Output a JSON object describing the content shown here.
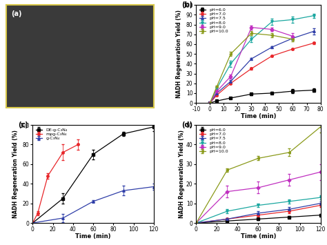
{
  "chart_data": [
    {
      "type": "image",
      "title": "(a)"
    },
    {
      "type": "line",
      "title": "(b)",
      "x_label": "Time (min)",
      "y_label": "NADH Regeneration Yield (%)",
      "xlim": [
        -10,
        80
      ],
      "xticks": [
        -10,
        0,
        10,
        20,
        30,
        40,
        50,
        60,
        70,
        80
      ],
      "ylim": [
        0,
        100
      ],
      "yticks": [
        0,
        10,
        20,
        30,
        40,
        50,
        60,
        70,
        80,
        90,
        100
      ],
      "legend": "upper left",
      "series": [
        {
          "name": "pH=6.0",
          "color": "#000000",
          "marker": "s",
          "x": [
            0,
            5,
            15,
            30,
            45,
            60,
            75
          ],
          "values": [
            0,
            2,
            5,
            9,
            10,
            12,
            13
          ],
          "errors": [
            0,
            1,
            1,
            1,
            1,
            2,
            2
          ]
        },
        {
          "name": "pH=7.0",
          "color": "#e8262a",
          "marker": "o",
          "x": [
            0,
            5,
            15,
            30,
            45,
            60,
            75
          ],
          "values": [
            0,
            8,
            20,
            35,
            48,
            55,
            61
          ],
          "errors": [
            0,
            1,
            1,
            1,
            1,
            1,
            1
          ]
        },
        {
          "name": "pH=7.5",
          "color": "#2f3ea8",
          "marker": "^",
          "x": [
            0,
            5,
            15,
            30,
            45,
            60,
            75
          ],
          "values": [
            0,
            10,
            22,
            45,
            57,
            66,
            73
          ],
          "errors": [
            0,
            1,
            1,
            1,
            1,
            2,
            3
          ]
        },
        {
          "name": "pH=8.0",
          "color": "#1aa7a0",
          "marker": "v",
          "x": [
            0,
            5,
            15,
            30,
            45,
            60,
            75
          ],
          "values": [
            0,
            15,
            40,
            65,
            83,
            85,
            89
          ],
          "errors": [
            0,
            1,
            3,
            3,
            3,
            3,
            2
          ]
        },
        {
          "name": "pH=9.0",
          "color": "#c02fc0",
          "marker": "D",
          "x": [
            0,
            5,
            15,
            30,
            45,
            60
          ],
          "values": [
            0,
            12,
            27,
            77,
            75,
            68
          ],
          "errors": [
            0,
            1,
            2,
            2,
            2,
            3
          ]
        },
        {
          "name": "pH=10.0",
          "color": "#8a9a1a",
          "marker": "<",
          "x": [
            0,
            5,
            15,
            30,
            45,
            60
          ],
          "values": [
            0,
            17,
            50,
            71,
            69,
            65
          ],
          "errors": [
            0,
            1,
            2,
            2,
            2,
            2
          ]
        }
      ]
    },
    {
      "type": "line",
      "title": "(c)",
      "x_label": "Time (min)",
      "y_label": "NADH Regeneration Yield (%)",
      "xlim": [
        0,
        120
      ],
      "xticks": [
        0,
        20,
        40,
        60,
        80,
        100,
        120
      ],
      "ylim": [
        0,
        100
      ],
      "yticks": [
        0,
        20,
        40,
        60,
        80,
        100
      ],
      "legend": "upper left",
      "series": [
        {
          "name": "DE-g-C₃N₄",
          "color": "#000000",
          "marker": "s",
          "x": [
            0,
            30,
            60,
            90,
            120
          ],
          "values": [
            0,
            25,
            70,
            91,
            98
          ],
          "errors": [
            0,
            5,
            5,
            2,
            4
          ]
        },
        {
          "name": "mpg-C₃N₄",
          "color": "#e8262a",
          "marker": "o",
          "x": [
            0,
            5,
            15,
            30,
            45
          ],
          "values": [
            0,
            10,
            48,
            72,
            80
          ],
          "errors": [
            0,
            2,
            3,
            8,
            5
          ]
        },
        {
          "name": "g-C₃N₄",
          "color": "#2f3ea8",
          "marker": "^",
          "x": [
            0,
            30,
            60,
            90,
            120
          ],
          "values": [
            0,
            5,
            22,
            33,
            37
          ],
          "errors": [
            0,
            4,
            1,
            5,
            3
          ]
        }
      ]
    },
    {
      "type": "line",
      "title": "(d)",
      "x_label": "Time (min)",
      "y_label": "NADH Regeneration Yield (%)",
      "xlim": [
        0,
        120
      ],
      "xticks": [
        0,
        20,
        40,
        60,
        80,
        100,
        120
      ],
      "ylim": [
        0,
        50
      ],
      "yticks": [
        0,
        10,
        20,
        30,
        40,
        50
      ],
      "legend": "upper left",
      "series": [
        {
          "name": "pH=6.0",
          "color": "#000000",
          "marker": "s",
          "x": [
            0,
            30,
            60,
            90,
            120
          ],
          "values": [
            0,
            1,
            2,
            3,
            4
          ],
          "errors": [
            0,
            0.5,
            0.5,
            0.5,
            0.5
          ]
        },
        {
          "name": "pH=7.0",
          "color": "#e8262a",
          "marker": "o",
          "x": [
            0,
            30,
            60,
            90,
            120
          ],
          "values": [
            0,
            2,
            4,
            6,
            9
          ],
          "errors": [
            0,
            0.5,
            0.5,
            1,
            1
          ]
        },
        {
          "name": "pH=7.5",
          "color": "#2f3ea8",
          "marker": "^",
          "x": [
            0,
            30,
            60,
            90,
            120
          ],
          "values": [
            0,
            2,
            5,
            7,
            10
          ],
          "errors": [
            0,
            0.5,
            1,
            1,
            1
          ]
        },
        {
          "name": "pH=8.0",
          "color": "#1aa7a0",
          "marker": "v",
          "x": [
            0,
            30,
            60,
            90,
            120
          ],
          "values": [
            0,
            6,
            9,
            11,
            13
          ],
          "errors": [
            0,
            1,
            1,
            1,
            1
          ]
        },
        {
          "name": "pH=9.0",
          "color": "#c02fc0",
          "marker": "D",
          "x": [
            0,
            30,
            60,
            90,
            120
          ],
          "values": [
            0,
            16,
            18,
            22,
            26
          ],
          "errors": [
            0,
            3,
            3,
            3,
            4
          ]
        },
        {
          "name": "pH=10.0",
          "color": "#8a9a1a",
          "marker": "<",
          "x": [
            0,
            30,
            60,
            90,
            120
          ],
          "values": [
            0,
            27,
            33,
            36,
            49
          ],
          "errors": [
            0,
            1,
            1,
            2,
            3
          ]
        }
      ]
    }
  ]
}
